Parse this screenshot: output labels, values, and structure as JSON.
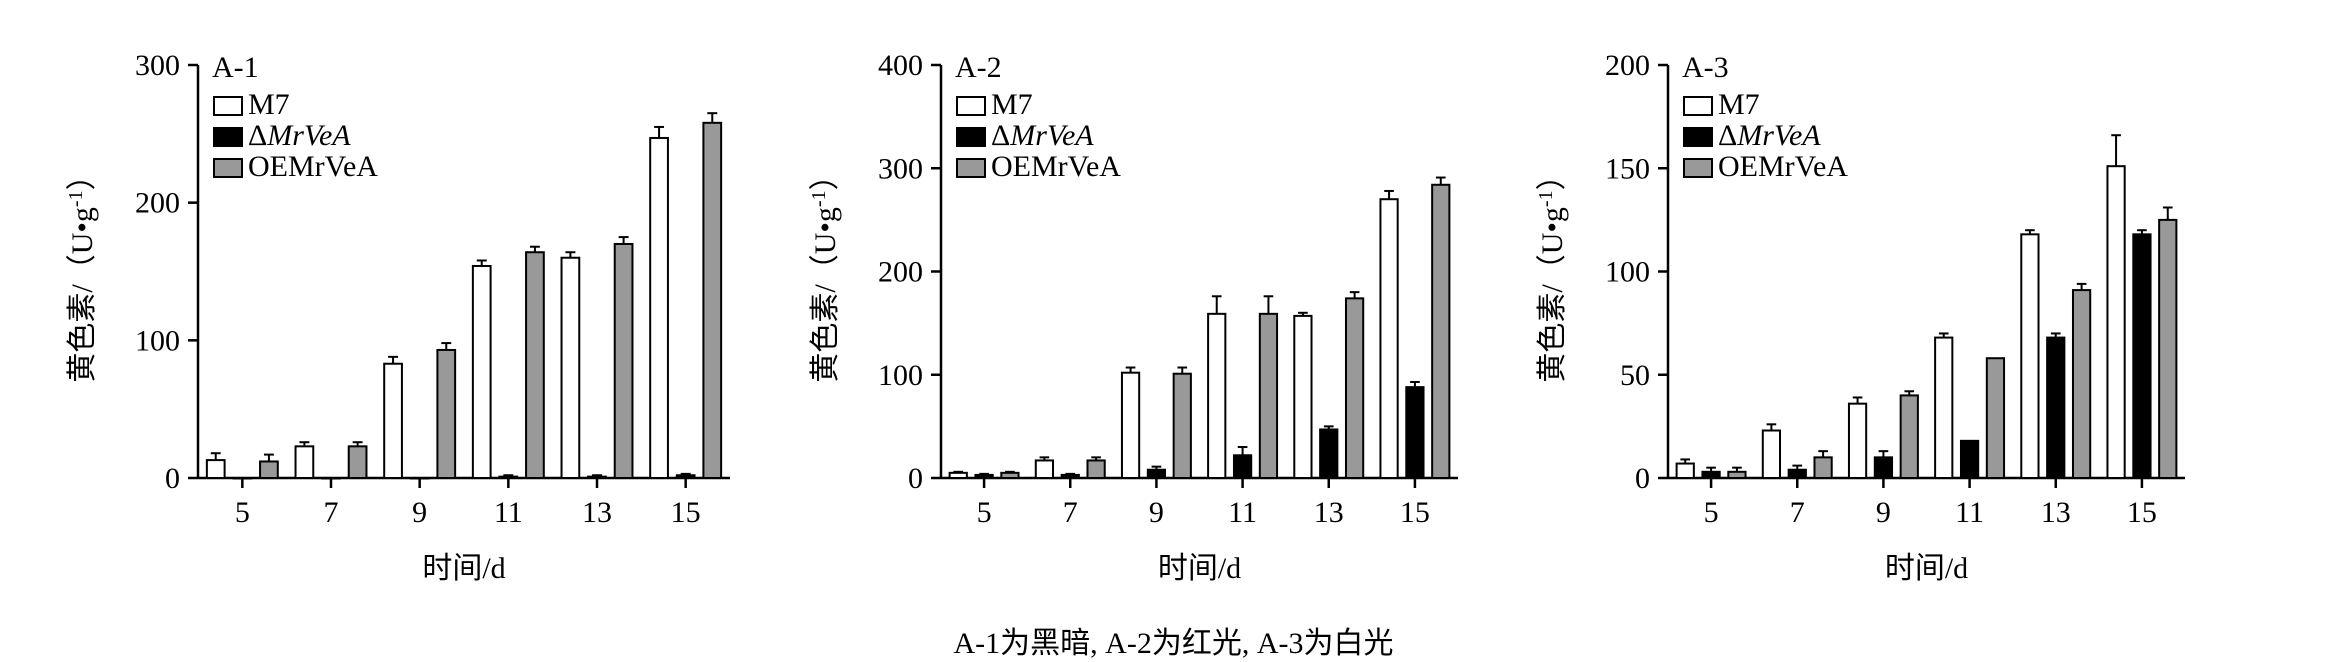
{
  "figure": {
    "caption": "A-1为黑暗, A-2为红光, A-3为白光",
    "series_names": [
      "M7",
      "ΔMrVeA",
      "OEMrVeA"
    ],
    "series_colors": [
      "#ffffff",
      "#000000",
      "#999999"
    ]
  },
  "chart_data": [
    {
      "type": "bar",
      "title": "A-1",
      "xlabel": "时间/d",
      "ylabel": "黄色素/（U•g-1）",
      "categories": [
        "5",
        "7",
        "9",
        "11",
        "13",
        "15"
      ],
      "ylim": [
        0,
        300
      ],
      "yticks": [
        0,
        100,
        200,
        300
      ],
      "legend": "top-left",
      "grid": false,
      "series": [
        {
          "name": "M7",
          "values": [
            13,
            23,
            83,
            154,
            160,
            247
          ],
          "errors": [
            5,
            3,
            5,
            4,
            4,
            8
          ]
        },
        {
          "name": "ΔMrVeA",
          "values": [
            0,
            0,
            0,
            1,
            1,
            2
          ],
          "errors": [
            0,
            0,
            0,
            1,
            1,
            1
          ]
        },
        {
          "name": "OEMrVeA",
          "values": [
            12,
            23,
            93,
            164,
            170,
            258
          ],
          "errors": [
            5,
            3,
            5,
            4,
            5,
            7
          ]
        }
      ]
    },
    {
      "type": "bar",
      "title": "A-2",
      "xlabel": "时间/d",
      "ylabel": "黄色素/（U•g-1）",
      "categories": [
        "5",
        "7",
        "9",
        "11",
        "13",
        "15"
      ],
      "ylim": [
        0,
        400
      ],
      "yticks": [
        0,
        100,
        200,
        300,
        400
      ],
      "legend": "top-left",
      "grid": false,
      "series": [
        {
          "name": "M7",
          "values": [
            5,
            17,
            102,
            159,
            157,
            270
          ],
          "errors": [
            1,
            3,
            5,
            17,
            3,
            8
          ]
        },
        {
          "name": "ΔMrVeA",
          "values": [
            3,
            3,
            8,
            22,
            47,
            88
          ],
          "errors": [
            1,
            1,
            3,
            8,
            3,
            5
          ]
        },
        {
          "name": "OEMrVeA",
          "values": [
            5,
            17,
            101,
            159,
            174,
            284
          ],
          "errors": [
            1,
            3,
            6,
            17,
            6,
            7
          ]
        }
      ]
    },
    {
      "type": "bar",
      "title": "A-3",
      "xlabel": "时间/d",
      "ylabel": "黄色素/（U•g-1）",
      "categories": [
        "5",
        "7",
        "9",
        "11",
        "13",
        "15"
      ],
      "ylim": [
        0,
        200
      ],
      "yticks": [
        0,
        50,
        100,
        150,
        200
      ],
      "legend": "top-left",
      "grid": false,
      "series": [
        {
          "name": "M7",
          "values": [
            7,
            23,
            36,
            68,
            118,
            151
          ],
          "errors": [
            2,
            3,
            3,
            2,
            2,
            15
          ]
        },
        {
          "name": "ΔMrVeA",
          "values": [
            3,
            4,
            10,
            18,
            68,
            118
          ],
          "errors": [
            2,
            2,
            3,
            0,
            2,
            2
          ]
        },
        {
          "name": "OEMrVeA",
          "values": [
            3,
            10,
            40,
            58,
            91,
            125
          ],
          "errors": [
            2,
            3,
            2,
            0,
            3,
            6
          ]
        }
      ]
    }
  ]
}
